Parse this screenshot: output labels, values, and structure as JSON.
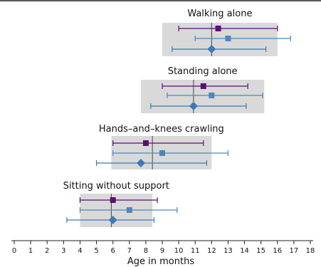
{
  "chart_data": {
    "type": "scatter",
    "xlabel": "Age in months",
    "xlim": [
      0,
      18
    ],
    "x_ticks": [
      0,
      1,
      2,
      3,
      4,
      5,
      6,
      7,
      8,
      9,
      10,
      11,
      12,
      13,
      14,
      15,
      16,
      17,
      18
    ],
    "series_styles": [
      {
        "marker": "square",
        "color": "#5b0f6e"
      },
      {
        "marker": "square",
        "color": "#4f86bd"
      },
      {
        "marker": "diamond",
        "color": "#3f78b5"
      }
    ],
    "colors": {
      "box": "#d9d9d9",
      "purple": "#5b0f6e",
      "blue": "#4f86bd",
      "axis": "#222222"
    },
    "milestones": [
      {
        "label": "Walking alone",
        "range_box": [
          9.0,
          16.0
        ],
        "reference_line": 12.0,
        "estimates": [
          {
            "mean": 12.4,
            "low": 10.0,
            "high": 16.0
          },
          {
            "mean": 13.0,
            "low": 11.0,
            "high": 16.8
          },
          {
            "mean": 12.0,
            "low": 9.6,
            "high": 15.3
          }
        ]
      },
      {
        "label": "Standing alone",
        "range_box": [
          7.7,
          15.2
        ],
        "reference_line": 10.9,
        "estimates": [
          {
            "mean": 11.5,
            "low": 9.0,
            "high": 14.2
          },
          {
            "mean": 12.0,
            "low": 9.3,
            "high": 15.1
          },
          {
            "mean": 10.9,
            "low": 8.3,
            "high": 14.1
          }
        ]
      },
      {
        "label": "Hands–and–knees crawling",
        "range_box": [
          5.9,
          12.0
        ],
        "reference_line": 8.4,
        "estimates": [
          {
            "mean": 8.0,
            "low": 6.0,
            "high": 11.5
          },
          {
            "mean": 9.0,
            "low": 6.0,
            "high": 13.0
          },
          {
            "mean": 7.7,
            "low": 5.0,
            "high": 11.7
          }
        ]
      },
      {
        "label": "Sitting without support",
        "range_box": [
          4.0,
          8.4
        ],
        "reference_line": 5.9,
        "estimates": [
          {
            "mean": 6.0,
            "low": 4.0,
            "high": 8.7
          },
          {
            "mean": 7.0,
            "low": 4.0,
            "high": 9.9
          },
          {
            "mean": 6.0,
            "low": 3.2,
            "high": 8.5
          }
        ]
      }
    ]
  }
}
